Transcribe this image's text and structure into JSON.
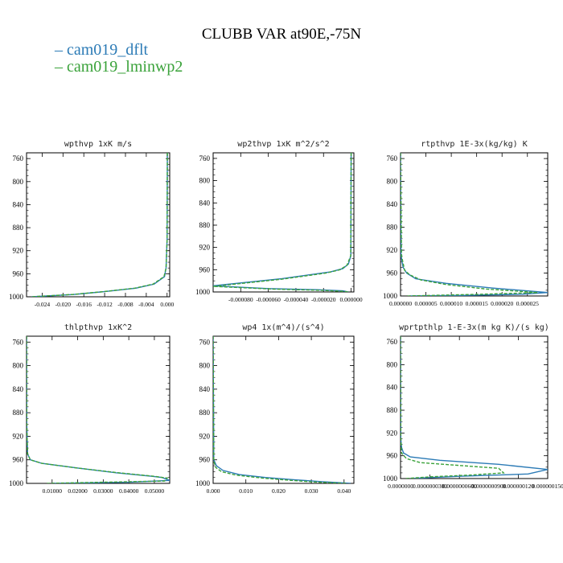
{
  "title": "CLUBB VAR at90E,-75N",
  "legend": [
    {
      "label": "cam019_dflt",
      "color": "#2c7bb6",
      "dash": "solid"
    },
    {
      "label": "cam019_lminwp2",
      "color": "#3aa23a",
      "dash": "dashed"
    }
  ],
  "chart_data": [
    {
      "type": "line",
      "title": "wpthvp  1xK m/s",
      "ylim": [
        1000,
        750
      ],
      "yticks": [
        760,
        800,
        840,
        880,
        920,
        960,
        1000
      ],
      "ytick_labels": [
        "760",
        "800",
        "840",
        "880",
        "920",
        "960",
        "1000"
      ],
      "xlim": [
        -0.027,
        0.0005
      ],
      "xticks": [
        -0.024,
        -0.02,
        -0.016,
        -0.012,
        -0.008,
        -0.004,
        0.0
      ],
      "xtick_labels": [
        "-0.024",
        "-0.020",
        "-0.016",
        "-0.012",
        "-0.008",
        "-0.004",
        "0.000"
      ],
      "series": [
        {
          "name": "cam019_dflt",
          "x": [
            5e-05,
            0.0,
            -0.0002,
            -0.0005,
            -0.0025,
            -0.006,
            -0.012,
            -0.018,
            -0.026
          ],
          "y": [
            750,
            900,
            950,
            965,
            978,
            985,
            991,
            996,
            1000
          ]
        },
        {
          "name": "cam019_lminwp2",
          "x": [
            5e-05,
            0.0,
            -0.0002,
            -0.0006,
            -0.0027,
            -0.0062,
            -0.0122,
            -0.0182,
            -0.0262
          ],
          "y": [
            750,
            900,
            950,
            965,
            978,
            985,
            991,
            996,
            1000
          ]
        }
      ]
    },
    {
      "type": "line",
      "title": "wp2thvp  1xK m^2/s^2",
      "ylim": [
        1000,
        750
      ],
      "yticks": [
        760,
        800,
        840,
        880,
        920,
        960,
        1000
      ],
      "ytick_labels": [
        "760",
        "800",
        "840",
        "880",
        "920",
        "960",
        "1000"
      ],
      "xlim": [
        -0.0001,
        2e-06
      ],
      "xticks": [
        -8e-05,
        -6e-05,
        -4e-05,
        -2e-05,
        0.0
      ],
      "xtick_labels": [
        "-0.000080",
        "-0.000060",
        "-0.000040",
        "-0.000020",
        "0.000000"
      ],
      "series": [
        {
          "name": "cam019_dflt",
          "x": [
            0.0,
            -2e-07,
            -2e-06,
            -6e-06,
            -1.5e-05,
            -5e-05,
            -0.0001,
            -6e-05,
            -2.5e-05,
            -6e-06,
            -2e-06
          ],
          "y": [
            750,
            935,
            950,
            958,
            964,
            976,
            989,
            994,
            996,
            998,
            1000
          ]
        },
        {
          "name": "cam019_lminwp2",
          "x": [
            0.0,
            -3e-07,
            -3e-06,
            -8e-06,
            -1.8e-05,
            -5e-05,
            -0.0001,
            -5.5e-05,
            -2.2e-05,
            -5e-06,
            -2e-06
          ],
          "y": [
            750,
            935,
            952,
            960,
            966,
            977,
            990,
            995,
            997,
            999,
            1000
          ]
        }
      ]
    },
    {
      "type": "line",
      "title": "rtpthvp  1E-3x(kg/kg) K",
      "ylim": [
        1000,
        750
      ],
      "yticks": [
        760,
        800,
        840,
        880,
        920,
        960,
        1000
      ],
      "ytick_labels": [
        "760",
        "800",
        "840",
        "880",
        "920",
        "960",
        "1000"
      ],
      "xlim": [
        0,
        2.9e-05
      ],
      "xticks": [
        0.0,
        5e-06,
        1e-05,
        1.5e-05,
        2e-05,
        2.5e-05
      ],
      "xtick_labels": [
        "0.000000",
        "0.000005",
        "0.000010",
        "0.000015",
        "0.000020",
        "0.000025"
      ],
      "series": [
        {
          "name": "cam019_dflt",
          "x": [
            0.0,
            1e-07,
            5e-07,
            1.2e-06,
            3e-06,
            9e-06,
            1.8e-05,
            2.9e-05,
            2.4e-05,
            1.2e-05,
            2e-06
          ],
          "y": [
            750,
            930,
            950,
            960,
            970,
            978,
            986,
            994,
            997,
            999,
            1000
          ]
        },
        {
          "name": "cam019_lminwp2",
          "x": [
            0.0,
            2e-07,
            8e-07,
            1.8e-06,
            4e-06,
            9e-06,
            1.7e-05,
            2.7e-05,
            1.6e-05,
            6e-06,
            1e-06
          ],
          "y": [
            750,
            930,
            955,
            963,
            972,
            980,
            988,
            994,
            997,
            999,
            1000
          ]
        }
      ]
    },
    {
      "type": "line",
      "title": "thlpthvp  1xK^2",
      "ylim": [
        1000,
        750
      ],
      "yticks": [
        760,
        800,
        840,
        880,
        920,
        960,
        1000
      ],
      "ytick_labels": [
        "760",
        "800",
        "840",
        "880",
        "920",
        "960",
        "1000"
      ],
      "xlim": [
        0,
        0.056
      ],
      "xticks": [
        0.01,
        0.02,
        0.03,
        0.04,
        0.05
      ],
      "xtick_labels": [
        "0.01000",
        "0.02000",
        "0.03000",
        "0.04000",
        "0.05000"
      ],
      "series": [
        {
          "name": "cam019_dflt",
          "x": [
            2e-05,
            0.0001,
            0.0004,
            0.0015,
            0.006,
            0.02,
            0.035,
            0.049,
            0.053,
            0.056,
            0.04,
            0.01
          ],
          "y": [
            750,
            900,
            950,
            960,
            966,
            974,
            982,
            988,
            990,
            995,
            998,
            1000
          ]
        },
        {
          "name": "cam019_lminwp2",
          "x": [
            2e-05,
            0.0001,
            0.0004,
            0.0015,
            0.006,
            0.02,
            0.036,
            0.05,
            0.055,
            0.054,
            0.03,
            0.008
          ],
          "y": [
            750,
            900,
            950,
            960,
            966,
            974,
            982,
            988,
            991,
            996,
            998,
            1000
          ]
        }
      ]
    },
    {
      "type": "line",
      "title": "wp4  1x(m^4)/(s^4)",
      "ylim": [
        1000,
        750
      ],
      "yticks": [
        760,
        800,
        840,
        880,
        920,
        960,
        1000
      ],
      "ytick_labels": [
        "760",
        "800",
        "840",
        "880",
        "920",
        "960",
        "1000"
      ],
      "xlim": [
        0,
        0.043
      ],
      "xticks": [
        0.0,
        0.01,
        0.02,
        0.03,
        0.04
      ],
      "xtick_labels": [
        "0.000",
        "0.010",
        "0.020",
        "0.030",
        "0.040"
      ],
      "series": [
        {
          "name": "cam019_dflt",
          "x": [
            0.0,
            0.0002,
            0.001,
            0.003,
            0.008,
            0.016,
            0.025,
            0.033,
            0.042
          ],
          "y": [
            750,
            960,
            970,
            978,
            985,
            990,
            994,
            997,
            1000
          ]
        },
        {
          "name": "cam019_lminwp2",
          "x": [
            0.0,
            0.0002,
            0.0008,
            0.0025,
            0.007,
            0.015,
            0.024,
            0.032,
            0.041
          ],
          "y": [
            750,
            962,
            973,
            980,
            986,
            991,
            995,
            998,
            1000
          ]
        }
      ]
    },
    {
      "type": "line",
      "title": "wprtpthlp  1-E-3x(m kg K)/(s kg)",
      "ylim": [
        1000,
        750
      ],
      "yticks": [
        760,
        800,
        840,
        880,
        920,
        960,
        1000
      ],
      "ytick_labels": [
        "760",
        "800",
        "840",
        "880",
        "920",
        "960",
        "1000"
      ],
      "xlim": [
        0,
        1.5e-07
      ],
      "xticks": [
        0.0,
        3e-08,
        6e-08,
        9e-08,
        1.2e-07,
        1.5e-07
      ],
      "xtick_labels": [
        "0.0000000",
        "0.0000000300",
        "0.0000000600",
        "0.0000000900",
        "0.000000120",
        "0.000000150"
      ],
      "series": [
        {
          "name": "cam019_dflt",
          "x": [
            0.0,
            3e-10,
            1e-09,
            3e-09,
            1e-08,
            4e-08,
            1e-07,
            1.5e-07,
            1.3e-07,
            6e-08,
            1e-08
          ],
          "y": [
            750,
            930,
            945,
            955,
            962,
            968,
            975,
            984,
            992,
            996,
            1000
          ]
        },
        {
          "name": "cam019_lminwp2",
          "x": [
            0.0,
            3e-10,
            1e-09,
            6e-09,
            2e-08,
            6e-08,
            1e-07,
            1.05e-07,
            7e-08,
            3e-08,
            5e-09
          ],
          "y": [
            750,
            930,
            955,
            965,
            972,
            977,
            982,
            990,
            994,
            997,
            1000
          ]
        }
      ]
    }
  ]
}
